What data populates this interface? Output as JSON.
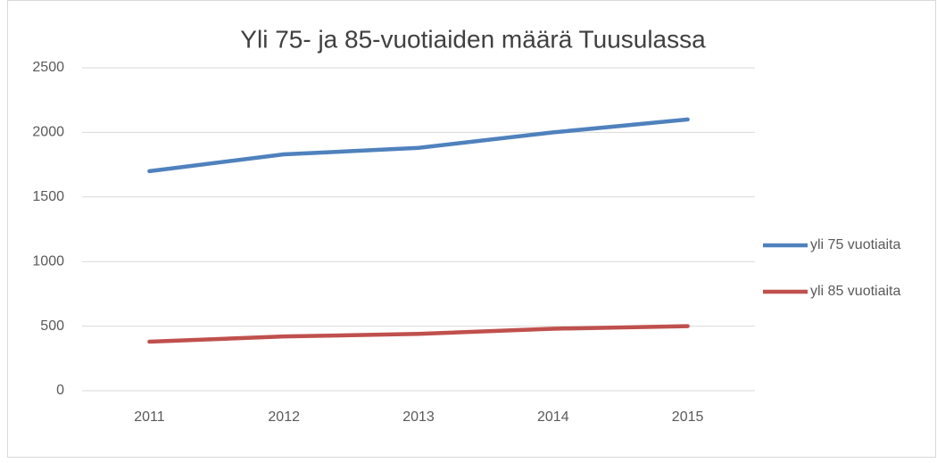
{
  "chart_data": {
    "type": "line",
    "title": "Yli 75- ja 85-vuotiaiden määrä Tuusulassa",
    "categories": [
      "2011",
      "2012",
      "2013",
      "2014",
      "2015"
    ],
    "series": [
      {
        "name": "yli 75 vuotiaita",
        "color": "#4f81bd",
        "values": [
          1700,
          1830,
          1880,
          2000,
          2100
        ]
      },
      {
        "name": "yli 85 vuotiaita",
        "color": "#c0504d",
        "values": [
          380,
          420,
          440,
          480,
          500
        ]
      }
    ],
    "ylim": [
      0,
      2500
    ],
    "yticks": [
      0,
      500,
      1000,
      1500,
      2000,
      2500
    ],
    "grid": true,
    "legend": "right"
  }
}
